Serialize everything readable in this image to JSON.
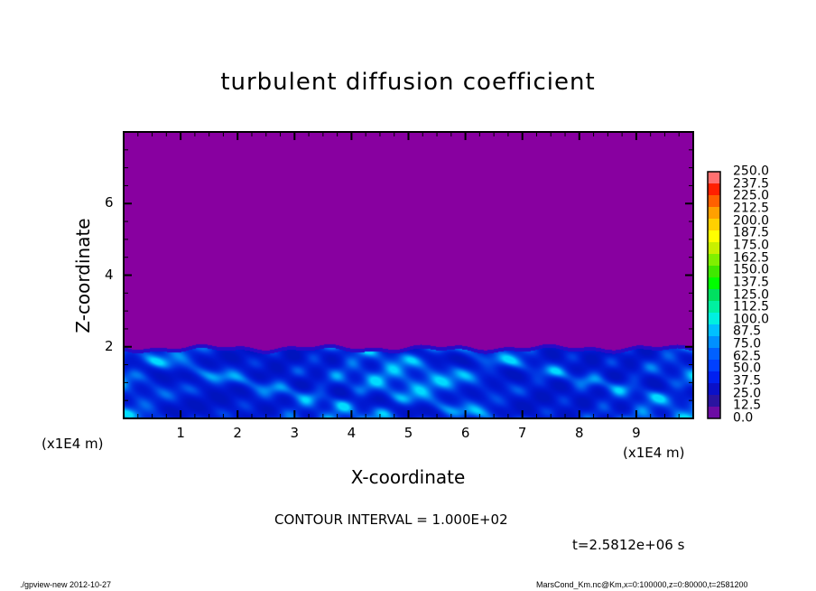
{
  "chart_data": {
    "type": "heatmap",
    "title": "turbulent diffusion coefficient",
    "xlabel": "X-coordinate",
    "ylabel": "Z-coordinate",
    "x_unit": "(x1E4 m)",
    "xlim": [
      0,
      10
    ],
    "ylim": [
      0,
      8
    ],
    "xticks": [
      1,
      2,
      3,
      4,
      5,
      6,
      7,
      8,
      9
    ],
    "yticks": [
      2,
      4,
      6
    ],
    "grid": false,
    "colorbar": {
      "placement": "right",
      "levels": [
        "0.0",
        "12.5",
        "25.0",
        "37.5",
        "50.0",
        "62.5",
        "75.0",
        "87.5",
        "100.0",
        "112.5",
        "125.0",
        "137.5",
        "150.0",
        "162.5",
        "175.0",
        "187.5",
        "200.0",
        "212.5",
        "225.0",
        "237.5",
        "250.0"
      ],
      "colors": [
        "#6c0ca4",
        "#2a14a0",
        "#0a10c8",
        "#0020f0",
        "#0040ff",
        "#0060ff",
        "#0090ff",
        "#00c0ff",
        "#00f0e0",
        "#00f0a0",
        "#00e060",
        "#00ff00",
        "#40e800",
        "#80f000",
        "#c8f000",
        "#ffff00",
        "#ffd000",
        "#ffa000",
        "#ff6000",
        "#ff2000",
        "#ff7070"
      ]
    },
    "background_value_color": "#8800a0",
    "turbulent_layer_top_z": 2.0,
    "annotations": {
      "contour_interval": "CONTOUR INTERVAL = 1.000E+02",
      "time": "t=2.5812e+06 s"
    }
  },
  "footer": {
    "left": "./gpview-new   2012-10-27",
    "right": "MarsCond_Km.nc@Km,x=0:100000,z=0:80000,t=2581200"
  }
}
